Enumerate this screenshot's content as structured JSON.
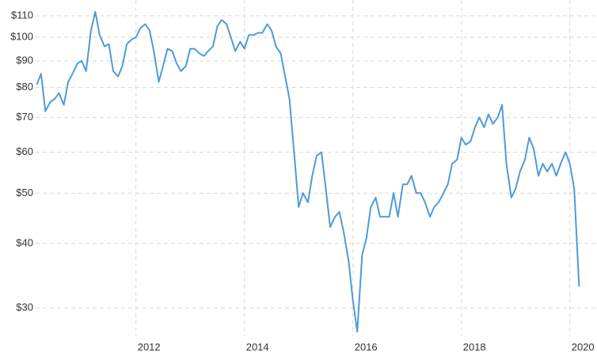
{
  "chart_data": {
    "type": "line",
    "color": "#4e9bd9",
    "log_scale": true,
    "grid": true,
    "x": [
      2010.17,
      2010.25,
      2010.33,
      2010.42,
      2010.5,
      2010.58,
      2010.67,
      2010.75,
      2010.83,
      2010.92,
      2011.0,
      2011.08,
      2011.17,
      2011.25,
      2011.33,
      2011.42,
      2011.5,
      2011.58,
      2011.67,
      2011.75,
      2011.83,
      2011.92,
      2012.0,
      2012.08,
      2012.17,
      2012.25,
      2012.33,
      2012.42,
      2012.5,
      2012.58,
      2012.67,
      2012.75,
      2012.83,
      2012.92,
      2013.0,
      2013.08,
      2013.17,
      2013.25,
      2013.33,
      2013.42,
      2013.5,
      2013.58,
      2013.67,
      2013.75,
      2013.83,
      2013.92,
      2014.0,
      2014.08,
      2014.17,
      2014.25,
      2014.33,
      2014.42,
      2014.5,
      2014.58,
      2014.67,
      2014.75,
      2014.83,
      2014.92,
      2015.0,
      2015.08,
      2015.17,
      2015.25,
      2015.33,
      2015.42,
      2015.5,
      2015.58,
      2015.67,
      2015.75,
      2015.83,
      2015.92,
      2016.0,
      2016.08,
      2016.17,
      2016.25,
      2016.33,
      2016.42,
      2016.5,
      2016.58,
      2016.67,
      2016.75,
      2016.83,
      2016.92,
      2017.0,
      2017.08,
      2017.17,
      2017.25,
      2017.33,
      2017.42,
      2017.5,
      2017.58,
      2017.67,
      2017.75,
      2017.83,
      2017.92,
      2018.0,
      2018.08,
      2018.17,
      2018.25,
      2018.33,
      2018.42,
      2018.5,
      2018.58,
      2018.67,
      2018.75,
      2018.83,
      2018.92,
      2019.0,
      2019.08,
      2019.17,
      2019.25,
      2019.33,
      2019.42,
      2019.5,
      2019.58,
      2019.67,
      2019.75,
      2019.83,
      2019.92,
      2020.0,
      2020.08,
      2020.17
    ],
    "values": [
      81,
      85,
      72,
      75,
      76,
      78,
      74,
      82,
      85,
      89,
      90,
      86,
      103,
      112,
      101,
      96,
      97,
      86,
      84,
      88,
      97,
      99,
      100,
      104,
      106,
      103,
      94,
      82,
      88,
      95,
      94,
      89,
      86,
      88,
      95,
      95,
      93,
      92,
      94,
      96,
      105,
      108,
      106,
      100,
      94,
      98,
      95,
      101,
      101,
      102,
      102,
      106,
      103,
      96,
      93,
      84,
      76,
      59,
      47,
      50,
      48,
      54,
      59,
      60,
      51,
      43,
      45,
      46,
      42,
      37,
      31,
      27,
      38,
      41,
      47,
      49,
      45,
      45,
      45,
      50,
      45,
      52,
      52,
      54,
      50,
      50,
      48,
      45,
      47,
      48,
      50,
      52,
      57,
      58,
      64,
      62,
      63,
      67,
      70,
      67,
      71,
      68,
      70,
      74,
      57,
      49,
      51,
      55,
      58,
      64,
      61,
      54,
      57,
      55,
      57,
      54,
      57,
      60,
      57,
      51,
      33
    ],
    "xlim": [
      2010.15,
      2020.5
    ],
    "xticks": [
      2012,
      2014,
      2016,
      2018,
      2020
    ],
    "ylim": [
      26.5,
      118
    ],
    "yticks": [
      {
        "value": 30,
        "label": "$30"
      },
      {
        "value": 40,
        "label": "$40"
      },
      {
        "value": 50,
        "label": "$50"
      },
      {
        "value": 60,
        "label": "$60"
      },
      {
        "value": 70,
        "label": "$70"
      },
      {
        "value": 80,
        "label": "$80"
      },
      {
        "value": 90,
        "label": "$90"
      },
      {
        "value": 100,
        "label": "$100"
      },
      {
        "value": 110,
        "label": "$110"
      }
    ]
  }
}
